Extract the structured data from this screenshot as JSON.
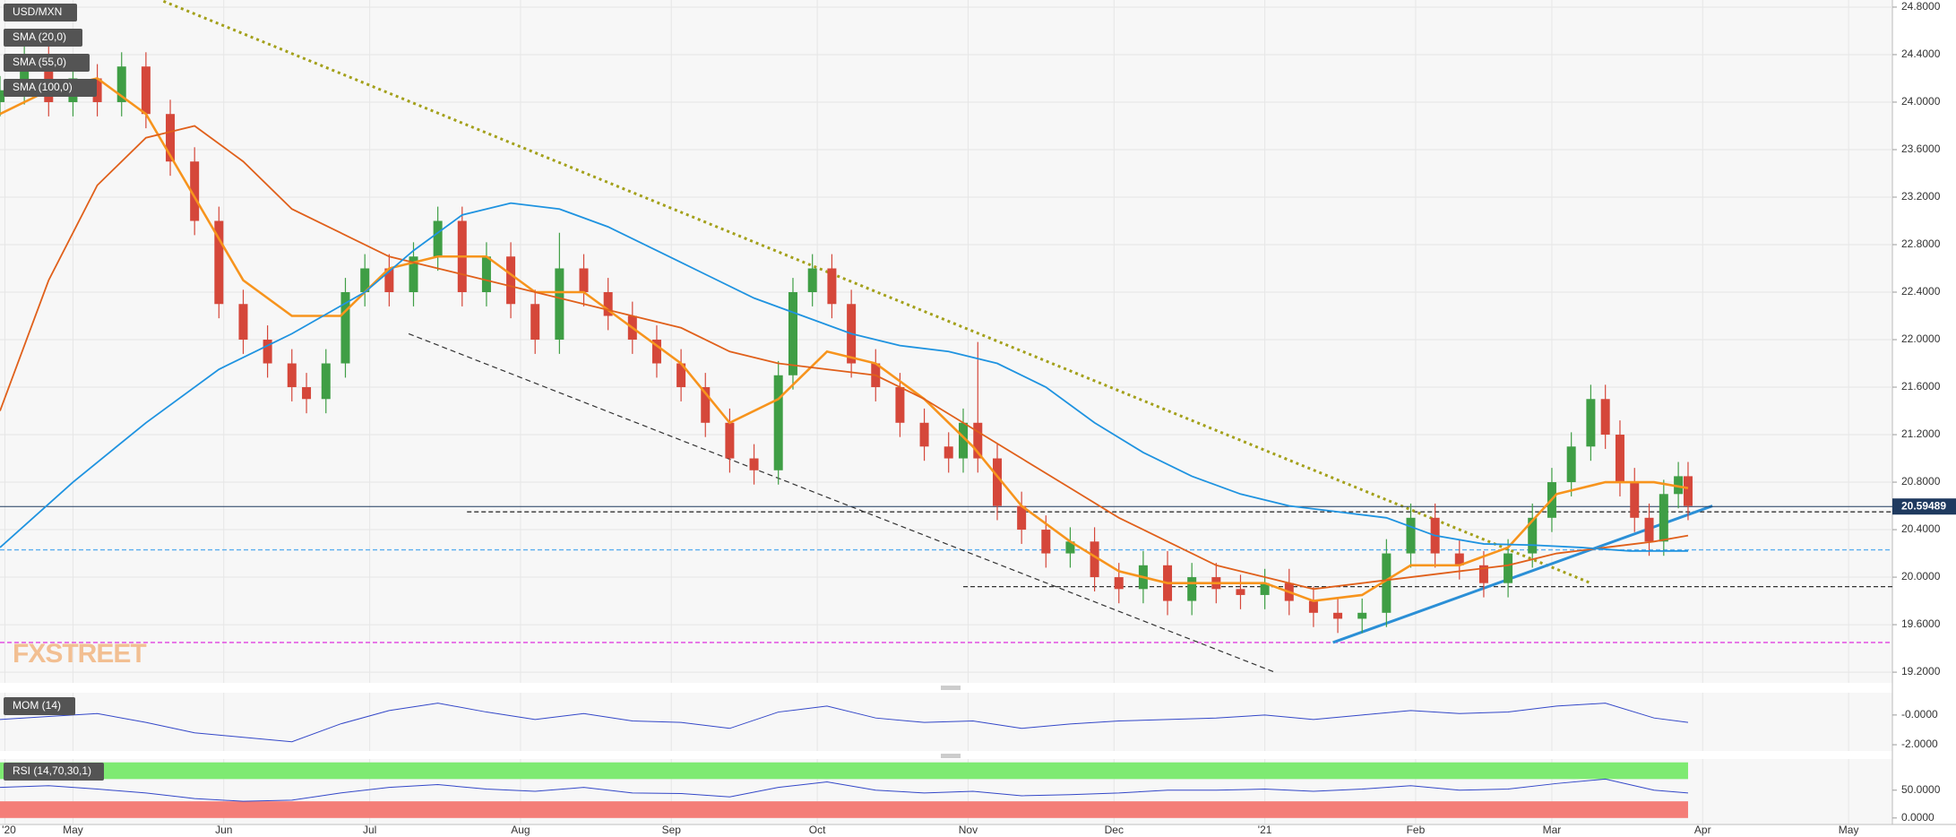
{
  "chart_data": {
    "type": "candlestick",
    "title": "USD/MXN",
    "watermark": "FXSTREET",
    "xlim": [
      15,
      404
    ],
    "xticks": [
      {
        "value": 16,
        "label": "'20"
      },
      {
        "value": 30,
        "label": "May"
      },
      {
        "value": 61,
        "label": "Jun"
      },
      {
        "value": 91,
        "label": "Jul"
      },
      {
        "value": 122,
        "label": "Aug"
      },
      {
        "value": 153,
        "label": "Sep"
      },
      {
        "value": 183,
        "label": "Oct"
      },
      {
        "value": 214,
        "label": "Nov"
      },
      {
        "value": 244,
        "label": "Dec"
      },
      {
        "value": 275,
        "label": "'21"
      },
      {
        "value": 306,
        "label": "Feb"
      },
      {
        "value": 334,
        "label": "Mar"
      },
      {
        "value": 365,
        "label": "Apr"
      },
      {
        "value": 395,
        "label": "May"
      }
    ],
    "ylim": [
      19.11,
      24.86
    ],
    "yticks": [
      {
        "value": 24.8,
        "label": "24.8000"
      },
      {
        "value": 24.4,
        "label": "24.4000"
      },
      {
        "value": 24.0,
        "label": "24.0000"
      },
      {
        "value": 23.6,
        "label": "23.6000"
      },
      {
        "value": 23.2,
        "label": "23.2000"
      },
      {
        "value": 22.8,
        "label": "22.8000"
      },
      {
        "value": 22.4,
        "label": "22.4000"
      },
      {
        "value": 22.0,
        "label": "22.0000"
      },
      {
        "value": 21.6,
        "label": "21.6000"
      },
      {
        "value": 21.2,
        "label": "21.2000"
      },
      {
        "value": 20.8,
        "label": "20.8000"
      },
      {
        "value": 20.4,
        "label": "20.4000"
      },
      {
        "value": 20.0,
        "label": "20.0000"
      },
      {
        "value": 19.6,
        "label": "19.6000"
      },
      {
        "value": 19.2,
        "label": "19.2000"
      }
    ],
    "grid": true,
    "up_color": "#3f9e45",
    "down_color": "#d5473a",
    "candles": {
      "x": [
        15,
        20,
        25,
        30,
        35,
        40,
        45,
        50,
        55,
        60,
        65,
        70,
        75,
        78,
        82,
        86,
        90,
        95,
        100,
        105,
        110,
        115,
        120,
        125,
        130,
        135,
        140,
        145,
        150,
        155,
        160,
        165,
        170,
        175,
        178,
        182,
        186,
        190,
        195,
        200,
        205,
        210,
        213,
        216,
        220,
        225,
        230,
        235,
        240,
        245,
        250,
        255,
        260,
        265,
        270,
        275,
        280,
        285,
        290,
        295,
        300,
        305,
        310,
        315,
        320,
        325,
        330,
        334,
        338,
        342,
        345,
        348,
        351,
        354,
        357,
        360,
        362
      ],
      "open": [
        24.0,
        24.1,
        24.4,
        24.0,
        24.2,
        24.0,
        24.3,
        23.9,
        23.5,
        23.0,
        22.3,
        22.0,
        21.8,
        21.6,
        21.5,
        21.8,
        22.4,
        22.6,
        22.4,
        22.7,
        23.0,
        22.4,
        22.7,
        22.3,
        22.0,
        22.6,
        22.4,
        22.2,
        22.0,
        21.8,
        21.6,
        21.3,
        21.0,
        20.9,
        21.7,
        22.4,
        22.6,
        22.3,
        21.8,
        21.6,
        21.3,
        21.1,
        21.0,
        21.3,
        21.0,
        20.6,
        20.4,
        20.2,
        20.3,
        20.0,
        19.9,
        20.1,
        19.8,
        20.0,
        19.9,
        19.85,
        19.95,
        19.8,
        19.7,
        19.65,
        19.7,
        20.2,
        20.5,
        20.2,
        20.1,
        19.95,
        20.2,
        20.5,
        20.8,
        21.1,
        21.5,
        21.2,
        20.8,
        20.5,
        20.3,
        20.7,
        20.85
      ],
      "high": [
        24.22,
        24.52,
        24.52,
        24.32,
        24.32,
        24.42,
        24.42,
        24.02,
        23.62,
        23.12,
        22.42,
        22.12,
        21.92,
        21.72,
        21.92,
        22.52,
        22.72,
        22.72,
        22.82,
        23.12,
        23.12,
        22.82,
        22.82,
        22.42,
        22.9,
        22.72,
        22.52,
        22.32,
        22.12,
        21.92,
        21.72,
        21.42,
        21.12,
        21.82,
        22.52,
        22.72,
        22.72,
        22.42,
        21.92,
        21.72,
        21.42,
        21.22,
        21.42,
        21.98,
        21.12,
        20.72,
        20.52,
        20.42,
        20.42,
        20.12,
        20.22,
        20.22,
        20.12,
        20.12,
        20.02,
        20.07,
        20.07,
        19.92,
        19.82,
        19.82,
        20.32,
        20.62,
        20.62,
        20.32,
        20.22,
        20.32,
        20.62,
        20.92,
        21.22,
        21.62,
        21.62,
        21.32,
        20.92,
        20.62,
        20.82,
        20.97,
        20.97
      ],
      "low": [
        23.88,
        23.98,
        23.88,
        23.88,
        23.88,
        23.88,
        23.78,
        23.38,
        22.88,
        22.18,
        21.88,
        21.68,
        21.48,
        21.38,
        21.38,
        21.68,
        22.28,
        22.28,
        22.28,
        22.58,
        22.28,
        22.28,
        22.18,
        21.88,
        21.88,
        22.28,
        22.08,
        21.88,
        21.68,
        21.48,
        21.18,
        20.88,
        20.78,
        20.78,
        21.58,
        22.28,
        22.18,
        21.68,
        21.48,
        21.18,
        20.98,
        20.88,
        20.88,
        20.88,
        20.48,
        20.28,
        20.08,
        20.08,
        19.88,
        19.78,
        19.78,
        19.68,
        19.68,
        19.78,
        19.73,
        19.73,
        19.68,
        19.58,
        19.53,
        19.53,
        19.58,
        20.08,
        20.08,
        19.98,
        19.83,
        19.83,
        20.08,
        20.38,
        20.68,
        20.98,
        21.08,
        20.68,
        20.38,
        20.18,
        20.18,
        20.58,
        20.48
      ],
      "close": [
        24.1,
        24.4,
        24.0,
        24.2,
        24.0,
        24.3,
        23.9,
        23.5,
        23.0,
        22.3,
        22.0,
        21.8,
        21.6,
        21.5,
        21.8,
        22.4,
        22.6,
        22.4,
        22.7,
        23.0,
        22.4,
        22.7,
        22.3,
        22.0,
        22.6,
        22.4,
        22.2,
        22.0,
        21.8,
        21.6,
        21.3,
        21.0,
        20.9,
        21.7,
        22.4,
        22.6,
        22.3,
        21.8,
        21.6,
        21.3,
        21.1,
        21.0,
        21.3,
        21.0,
        20.6,
        20.4,
        20.2,
        20.3,
        20.0,
        19.9,
        20.1,
        19.8,
        20.0,
        19.9,
        19.85,
        19.95,
        19.8,
        19.7,
        19.65,
        19.7,
        20.2,
        20.5,
        20.2,
        20.1,
        19.95,
        20.2,
        20.5,
        20.8,
        21.1,
        21.5,
        21.2,
        20.8,
        20.5,
        20.3,
        20.7,
        20.85,
        20.6
      ]
    },
    "series": [
      {
        "name": "SMA (20,0)",
        "color": "#f7941d",
        "width": 2.6,
        "x": [
          15,
          25,
          35,
          45,
          55,
          65,
          75,
          85,
          95,
          105,
          115,
          125,
          135,
          145,
          155,
          165,
          175,
          185,
          195,
          205,
          215,
          225,
          235,
          245,
          255,
          265,
          275,
          285,
          295,
          305,
          315,
          325,
          335,
          345,
          355,
          362
        ],
        "values": [
          23.9,
          24.1,
          24.2,
          23.9,
          23.2,
          22.5,
          22.2,
          22.2,
          22.6,
          22.7,
          22.7,
          22.4,
          22.4,
          22.1,
          21.8,
          21.3,
          21.5,
          21.9,
          21.8,
          21.5,
          21.1,
          20.6,
          20.3,
          20.05,
          19.95,
          19.95,
          19.95,
          19.8,
          19.85,
          20.1,
          20.1,
          20.25,
          20.7,
          20.8,
          20.8,
          20.75
        ]
      },
      {
        "name": "SMA (55,0)",
        "color": "#e0601b",
        "width": 1.8,
        "x": [
          15,
          25,
          35,
          45,
          55,
          65,
          75,
          85,
          95,
          105,
          115,
          125,
          135,
          145,
          155,
          165,
          175,
          185,
          195,
          205,
          215,
          225,
          235,
          245,
          255,
          265,
          275,
          285,
          295,
          305,
          315,
          325,
          335,
          345,
          355,
          362
        ],
        "values": [
          21.4,
          22.5,
          23.3,
          23.7,
          23.8,
          23.5,
          23.1,
          22.9,
          22.7,
          22.6,
          22.5,
          22.4,
          22.3,
          22.2,
          22.1,
          21.9,
          21.8,
          21.75,
          21.7,
          21.5,
          21.25,
          21.0,
          20.75,
          20.5,
          20.3,
          20.1,
          20.0,
          19.9,
          19.95,
          20.0,
          20.05,
          20.1,
          20.2,
          20.25,
          20.3,
          20.35
        ]
      },
      {
        "name": "SMA (100,0)",
        "color": "#1f93e0",
        "width": 1.8,
        "x": [
          15,
          30,
          45,
          60,
          75,
          90,
          100,
          110,
          120,
          130,
          140,
          150,
          160,
          170,
          180,
          190,
          200,
          210,
          220,
          230,
          240,
          250,
          260,
          270,
          280,
          290,
          300,
          310,
          320,
          330,
          340,
          350,
          362
        ],
        "values": [
          20.25,
          20.8,
          21.3,
          21.75,
          22.05,
          22.4,
          22.75,
          23.05,
          23.15,
          23.1,
          22.95,
          22.75,
          22.55,
          22.35,
          22.2,
          22.05,
          21.95,
          21.9,
          21.8,
          21.6,
          21.3,
          21.05,
          20.85,
          20.7,
          20.6,
          20.55,
          20.5,
          20.35,
          20.28,
          20.27,
          20.25,
          20.22,
          20.22
        ]
      }
    ],
    "trendlines": [
      {
        "x": [
          48.6,
          342
        ],
        "y": [
          24.85,
          19.95
        ],
        "color": "#a3a01a",
        "style": "dotted"
      },
      {
        "x": [
          99,
          277
        ],
        "y": [
          22.05,
          19.2
        ],
        "color": "#333333",
        "style": "dashed"
      },
      {
        "x": [
          289,
          367
        ],
        "y": [
          19.45,
          20.6
        ],
        "color": "#2b8fd6",
        "style": "solid"
      }
    ],
    "levels": [
      {
        "value": 20.55,
        "from": 111,
        "color": "#333333"
      },
      {
        "value": 20.23,
        "from": 15,
        "color": "#5aaef0"
      },
      {
        "value": 19.92,
        "from": 213,
        "color": "#333333"
      },
      {
        "value": 19.45,
        "from": 15,
        "color": "#e040e0"
      }
    ],
    "last_price": 20.59489,
    "momentum": {
      "name": "MOM (14)",
      "color": "#3347c8",
      "ylim": [
        -2.42,
        1.5
      ],
      "yticks": [
        {
          "value": 0,
          "label": "-0.0000"
        },
        {
          "value": -2,
          "label": "-2.0000"
        }
      ],
      "x": [
        15,
        25,
        35,
        45,
        55,
        65,
        75,
        85,
        95,
        105,
        115,
        125,
        135,
        145,
        155,
        165,
        175,
        185,
        195,
        205,
        215,
        225,
        235,
        245,
        255,
        265,
        275,
        285,
        295,
        305,
        315,
        325,
        335,
        345,
        355,
        362
      ],
      "values": [
        -0.3,
        -0.1,
        0.1,
        -0.5,
        -1.2,
        -1.5,
        -1.8,
        -0.6,
        0.3,
        0.8,
        0.2,
        -0.3,
        0.1,
        -0.4,
        -0.5,
        -0.9,
        0.2,
        0.6,
        -0.2,
        -0.5,
        -0.4,
        -0.9,
        -0.6,
        -0.4,
        -0.3,
        -0.2,
        0.0,
        -0.3,
        0.0,
        0.3,
        0.1,
        0.2,
        0.6,
        0.8,
        -0.2,
        -0.5
      ]
    },
    "rsi": {
      "name": "RSI (14,70,30,1)",
      "color": "#3347c8",
      "ylim": [
        -10,
        106
      ],
      "yticks": [
        {
          "value": 50,
          "label": "50.0000"
        },
        {
          "value": 0,
          "label": "0.0000"
        }
      ],
      "bands": [
        {
          "from": 70,
          "to": 100,
          "color": "#7eea72"
        },
        {
          "from": 0,
          "to": 30,
          "color": "#f47e78"
        }
      ],
      "x": [
        15,
        25,
        35,
        45,
        55,
        65,
        75,
        85,
        95,
        105,
        115,
        125,
        135,
        145,
        155,
        165,
        175,
        185,
        195,
        205,
        215,
        225,
        235,
        245,
        255,
        265,
        275,
        285,
        295,
        305,
        315,
        325,
        335,
        345,
        355,
        362
      ],
      "values": [
        55,
        58,
        52,
        45,
        35,
        30,
        32,
        45,
        55,
        60,
        52,
        48,
        55,
        45,
        44,
        38,
        55,
        65,
        50,
        45,
        48,
        40,
        42,
        45,
        50,
        50,
        52,
        48,
        52,
        58,
        50,
        52,
        62,
        70,
        50,
        45
      ]
    }
  }
}
